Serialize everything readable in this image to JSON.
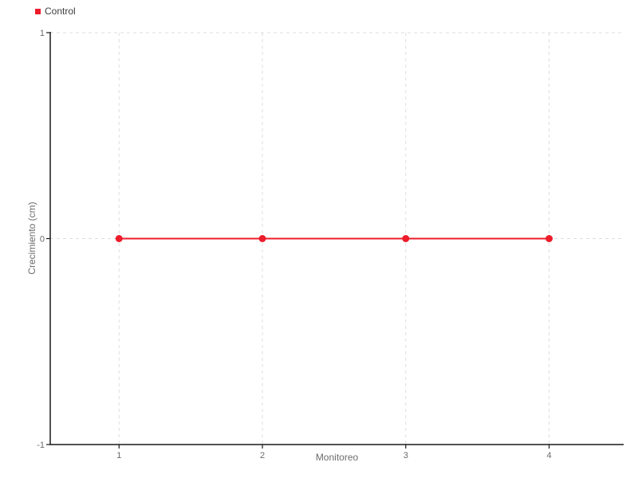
{
  "chart_data": {
    "type": "line",
    "title": "",
    "xlabel": "Monitoreo",
    "ylabel": "Crecimiento (cm)",
    "x": [
      1,
      2,
      3,
      4
    ],
    "series": [
      {
        "name": "Control",
        "values": [
          0,
          0,
          0,
          0
        ],
        "color": "#ed1c2b"
      }
    ],
    "xlim": [
      0.52,
      4.52
    ],
    "ylim": [
      -1,
      1
    ],
    "xticks": [
      1,
      2,
      3,
      4
    ],
    "yticks": [
      1,
      0,
      -1
    ],
    "grid": true,
    "grid_style": "dashed",
    "legend_position": "top-left",
    "marker": "circle",
    "colors": {
      "series": "#ed1c2b",
      "grid": "#dedede",
      "axis": "#1a1a1a",
      "tick_label": "#6b6c6e",
      "legend_text": "#3d3d3f"
    }
  }
}
